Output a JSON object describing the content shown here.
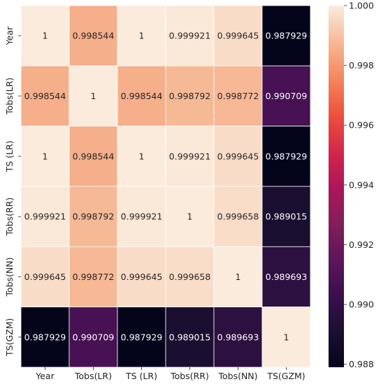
{
  "chart_data": {
    "type": "heatmap",
    "title": "",
    "xlabel": "",
    "ylabel": "",
    "x_labels": [
      "Year",
      "Tobs(LR)",
      "TS (LR)",
      "Tobs(RR)",
      "Tobs(NN)",
      "TS(GZM)"
    ],
    "y_labels": [
      "Year",
      "Tobs(LR)",
      "TS (LR)",
      "Tobs(RR)",
      "Tobs(NN)",
      "TS(GZM)"
    ],
    "values": [
      [
        1,
        0.998544,
        1,
        0.999921,
        0.999645,
        0.987929
      ],
      [
        0.998544,
        1,
        0.998544,
        0.998792,
        0.998772,
        0.990709
      ],
      [
        1,
        0.998544,
        1,
        0.999921,
        0.999645,
        0.987929
      ],
      [
        0.999921,
        0.998792,
        0.999921,
        1,
        0.999658,
        0.989015
      ],
      [
        0.999645,
        0.998772,
        0.999645,
        0.999658,
        1,
        0.989693
      ],
      [
        0.987929,
        0.990709,
        0.987929,
        0.989015,
        0.989693,
        1
      ]
    ],
    "annotations": [
      [
        "1",
        "0.998544",
        "1",
        "0.999921",
        "0.999645",
        "0.987929"
      ],
      [
        "0.998544",
        "1",
        "0.998544",
        "0.998792",
        "0.998772",
        "0.990709"
      ],
      [
        "1",
        "0.998544",
        "1",
        "0.999921",
        "0.999645",
        "0.987929"
      ],
      [
        "0.999921",
        "0.998792",
        "0.999921",
        "1",
        "0.999658",
        "0.989015"
      ],
      [
        "0.999645",
        "0.998772",
        "0.999645",
        "0.999658",
        "1",
        "0.989693"
      ],
      [
        "0.987929",
        "0.990709",
        "0.987929",
        "0.989015",
        "0.989693",
        "1"
      ]
    ],
    "colorbar": {
      "range": [
        0.9879,
        1.0
      ],
      "ticks": [
        0.988,
        0.99,
        0.992,
        0.994,
        0.996,
        0.998,
        1.0
      ],
      "tick_labels": [
        "0.988",
        "0.990",
        "0.992",
        "0.994",
        "0.996",
        "0.998",
        "1.000"
      ],
      "colormap": "rocket"
    },
    "grid": false,
    "legend": "colorbar-right"
  }
}
